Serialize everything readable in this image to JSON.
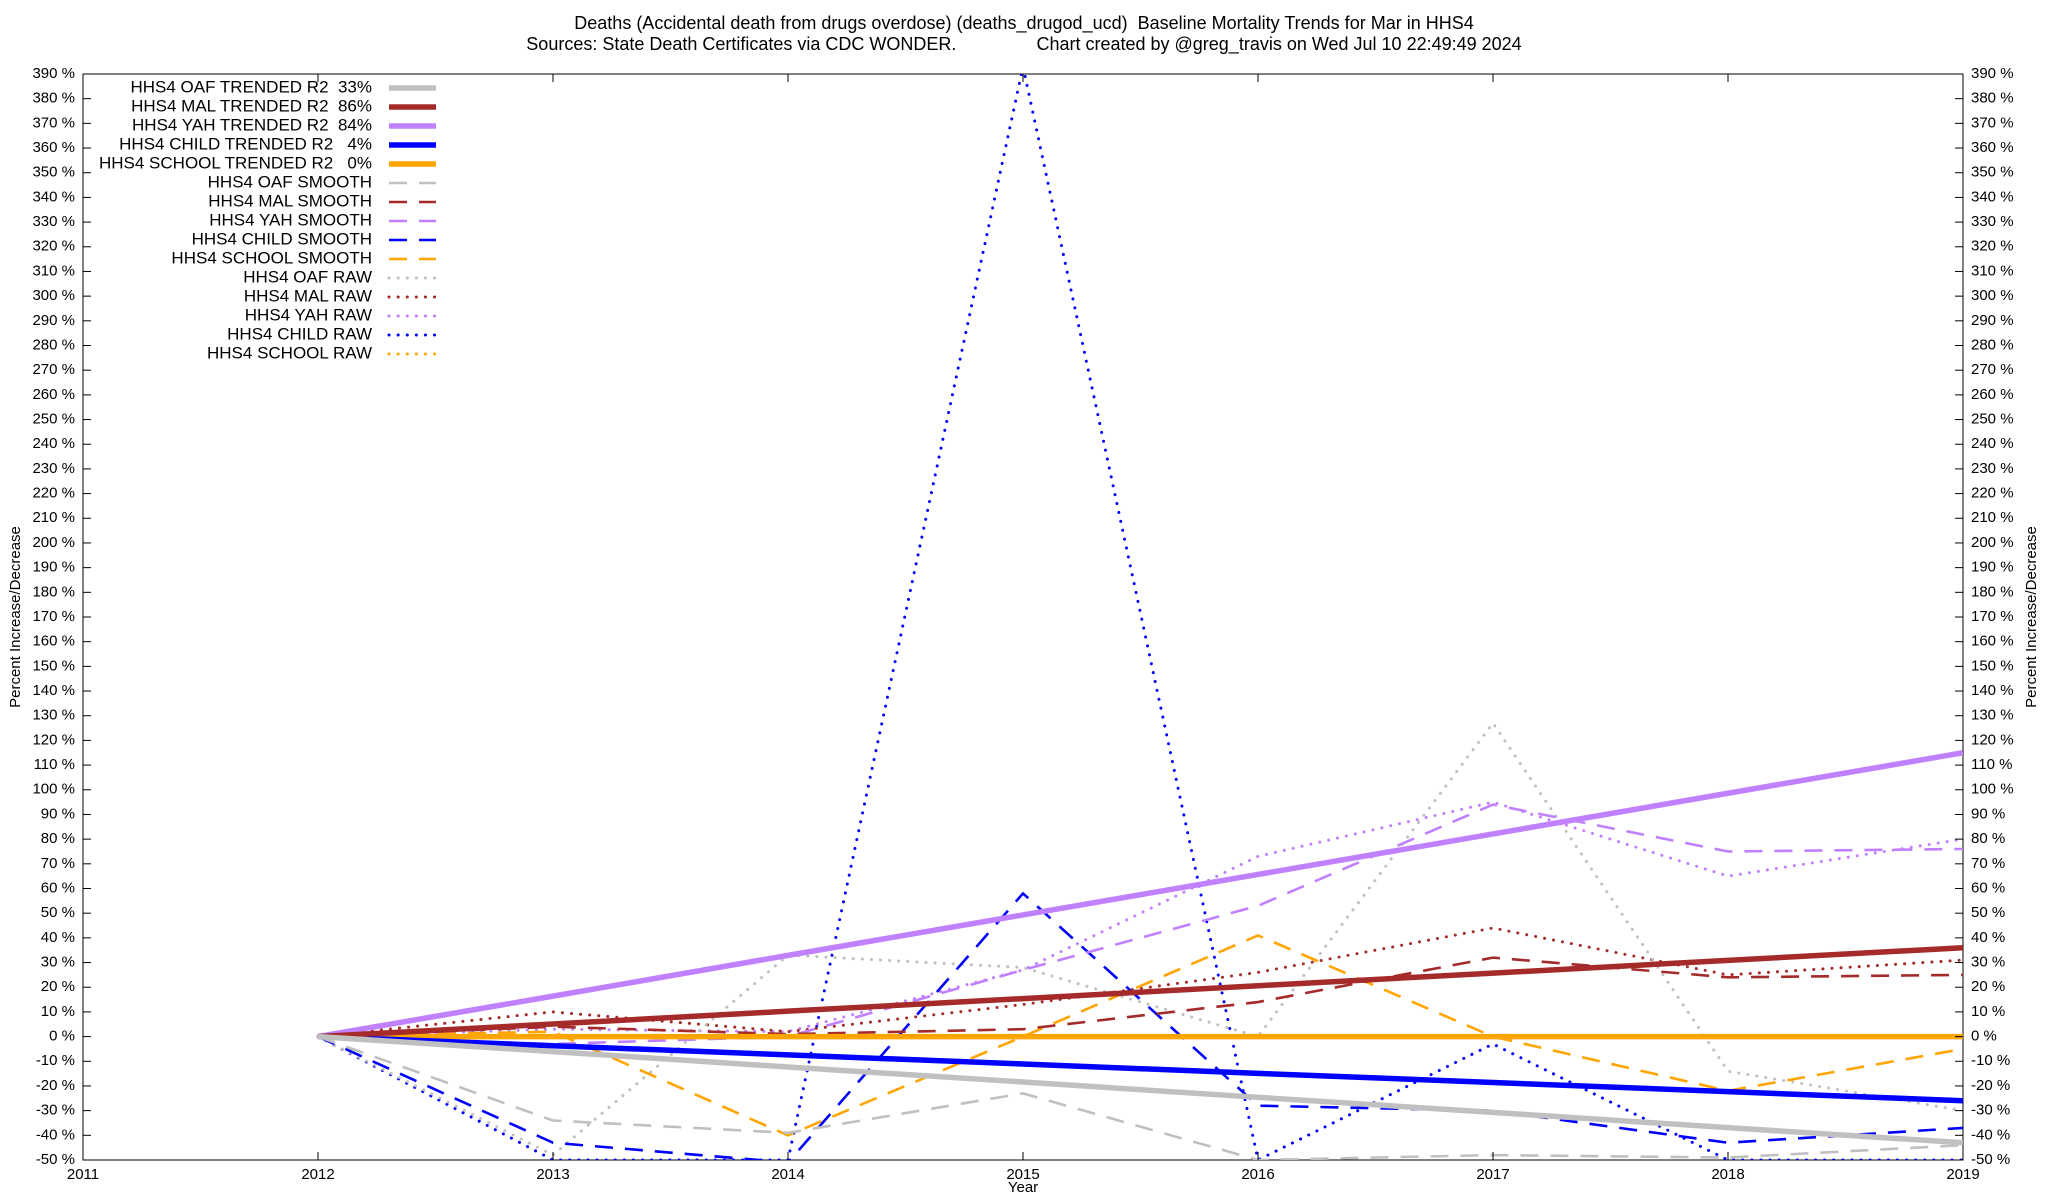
{
  "chart_data": {
    "type": "line",
    "title": "Deaths (Accidental death from drugs overdose) (deaths_drugod_ucd)  Baseline Mortality Trends for Mar in HHS4",
    "subtitle": "Sources: State Death Certificates via CDC WONDER.                Chart created by @greg_travis on Wed Jul 10 22:49:49 2024",
    "xlabel": "Year",
    "ylabel": "Percent Increase/Decrease",
    "legend": "upper-left",
    "grid": false,
    "xlim": [
      2011,
      2019
    ],
    "xticks": [
      2011,
      2012,
      2013,
      2014,
      2015,
      2016,
      2017,
      2018,
      2019
    ],
    "ylim": [
      -50,
      390
    ],
    "yticks": [
      {
        "value": -50,
        "label": "-50 %"
      },
      {
        "value": -40,
        "label": "-40 %"
      },
      {
        "value": -30,
        "label": "-30 %"
      },
      {
        "value": -20,
        "label": "-20 %"
      },
      {
        "value": -10,
        "label": "-10 %"
      },
      {
        "value": 0,
        "label": "0 %"
      },
      {
        "value": 10,
        "label": "10 %"
      },
      {
        "value": 20,
        "label": "20 %"
      },
      {
        "value": 30,
        "label": "30 %"
      },
      {
        "value": 40,
        "label": "40 %"
      },
      {
        "value": 50,
        "label": "50 %"
      },
      {
        "value": 60,
        "label": "60 %"
      },
      {
        "value": 70,
        "label": "70 %"
      },
      {
        "value": 80,
        "label": "80 %"
      },
      {
        "value": 90,
        "label": "90 %"
      },
      {
        "value": 100,
        "label": "100 %"
      },
      {
        "value": 110,
        "label": "110 %"
      },
      {
        "value": 120,
        "label": "120 %"
      },
      {
        "value": 130,
        "label": "130 %"
      },
      {
        "value": 140,
        "label": "140 %"
      },
      {
        "value": 150,
        "label": "150 %"
      },
      {
        "value": 160,
        "label": "160 %"
      },
      {
        "value": 170,
        "label": "170 %"
      },
      {
        "value": 180,
        "label": "180 %"
      },
      {
        "value": 190,
        "label": "190 %"
      },
      {
        "value": 200,
        "label": "200 %"
      },
      {
        "value": 210,
        "label": "210 %"
      },
      {
        "value": 220,
        "label": "220 %"
      },
      {
        "value": 230,
        "label": "230 %"
      },
      {
        "value": 240,
        "label": "240 %"
      },
      {
        "value": 250,
        "label": "250 %"
      },
      {
        "value": 260,
        "label": "260 %"
      },
      {
        "value": 270,
        "label": "270 %"
      },
      {
        "value": 280,
        "label": "280 %"
      },
      {
        "value": 290,
        "label": "290 %"
      },
      {
        "value": 300,
        "label": "300 %"
      },
      {
        "value": 310,
        "label": "310 %"
      },
      {
        "value": 320,
        "label": "320 %"
      },
      {
        "value": 330,
        "label": "330 %"
      },
      {
        "value": 340,
        "label": "340 %"
      },
      {
        "value": 350,
        "label": "350 %"
      },
      {
        "value": 360,
        "label": "360 %"
      },
      {
        "value": 370,
        "label": "370 %"
      },
      {
        "value": 380,
        "label": "380 %"
      },
      {
        "value": 390,
        "label": "390 %"
      }
    ],
    "x": [
      2012,
      2013,
      2014,
      2015,
      2016,
      2017,
      2018,
      2019
    ],
    "series": [
      {
        "name": "HHS4 OAF TRENDED R2  33%",
        "color": "#c0c0c0",
        "style": "solid",
        "values": [
          0,
          -6.1,
          -12.3,
          -18.4,
          -24.6,
          -30.7,
          -36.9,
          -43
        ]
      },
      {
        "name": "HHS4 MAL TRENDED R2  86%",
        "color": "#a52a2a",
        "style": "solid",
        "values": [
          0,
          5.1,
          10.3,
          15.4,
          20.6,
          25.7,
          30.9,
          36
        ]
      },
      {
        "name": "HHS4 YAH TRENDED R2  84%",
        "color": "#c080ff",
        "style": "solid",
        "values": [
          0,
          16.4,
          32.9,
          49.3,
          65.7,
          82.1,
          98.6,
          115
        ]
      },
      {
        "name": "HHS4 CHILD TRENDED R2   4%",
        "color": "#0000ff",
        "style": "solid",
        "values": [
          0,
          -3.7,
          -7.4,
          -11.1,
          -14.9,
          -18.6,
          -22.3,
          -26
        ]
      },
      {
        "name": "HHS4 SCHOOL TRENDED R2   0%",
        "color": "#ffa500",
        "style": "solid",
        "values": [
          0,
          0,
          0,
          0,
          0,
          0,
          0,
          0
        ]
      },
      {
        "name": "HHS4 OAF SMOOTH",
        "color": "#c0c0c0",
        "style": "dashed",
        "values": [
          0,
          -34,
          -39,
          -23,
          -50,
          -48,
          -49,
          -44
        ]
      },
      {
        "name": "HHS4 MAL SMOOTH",
        "color": "#a52a2a",
        "style": "dashed",
        "values": [
          0,
          4,
          1,
          3,
          14,
          32,
          24,
          25
        ]
      },
      {
        "name": "HHS4 YAH SMOOTH",
        "color": "#c080ff",
        "style": "dashed",
        "values": [
          0,
          -3,
          0,
          27,
          53,
          94,
          75,
          76
        ]
      },
      {
        "name": "HHS4 CHILD SMOOTH",
        "color": "#0000ff",
        "style": "dashed",
        "values": [
          0,
          -43,
          -51,
          58,
          -28,
          -30,
          -43,
          -37
        ]
      },
      {
        "name": "HHS4 SCHOOL SMOOTH",
        "color": "#ffa500",
        "style": "dashed",
        "values": [
          0,
          2,
          -40,
          0,
          41,
          0,
          -22,
          -5
        ]
      },
      {
        "name": "HHS4 OAF RAW",
        "color": "#c0c0c0",
        "style": "dotted",
        "values": [
          0,
          -48,
          33,
          28,
          0,
          127,
          -14,
          -30
        ]
      },
      {
        "name": "HHS4 MAL RAW",
        "color": "#a52a2a",
        "style": "dotted",
        "values": [
          0,
          10,
          2,
          13,
          26,
          44,
          25,
          31
        ]
      },
      {
        "name": "HHS4 YAH RAW",
        "color": "#c080ff",
        "style": "dotted",
        "values": [
          0,
          3,
          2,
          27,
          73,
          95,
          65,
          80
        ]
      },
      {
        "name": "HHS4 CHILD RAW",
        "color": "#0000ff",
        "style": "dotted",
        "values": [
          0,
          -50,
          -50,
          393,
          -50,
          -3,
          -50,
          -50
        ]
      },
      {
        "name": "HHS4 SCHOOL RAW",
        "color": "#ffa500",
        "style": "dotted",
        "values": [
          0,
          0,
          0,
          0,
          0,
          0,
          0,
          0
        ]
      }
    ]
  }
}
